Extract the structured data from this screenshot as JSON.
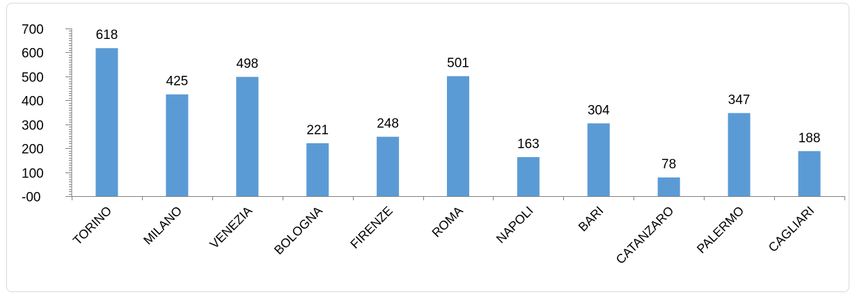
{
  "chart_data": {
    "type": "bar",
    "title": "",
    "xlabel": "",
    "ylabel": "",
    "categories": [
      "TORINO",
      "MILANO",
      "VENEZIA",
      "BOLOGNA",
      "FIRENZE",
      "ROMA",
      "NAPOLI",
      "BARI",
      "CATANZARO",
      "PALERMO",
      "CAGLIARI"
    ],
    "values": [
      618,
      425,
      498,
      221,
      248,
      501,
      163,
      304,
      78,
      347,
      188
    ],
    "data_labels": [
      "618",
      "425",
      "498",
      "221",
      "248",
      "501",
      "163",
      "304",
      "78",
      "347",
      "188"
    ],
    "ylim": [
      0,
      700
    ],
    "y_ticks": [
      0,
      100,
      200,
      300,
      400,
      500,
      600,
      700
    ],
    "y_tick_labels": [
      "-00",
      "100",
      "200",
      "300",
      "400",
      "500",
      "600",
      "700"
    ],
    "grid": false,
    "legend": "none",
    "bar_color": "#5b9bd5"
  }
}
